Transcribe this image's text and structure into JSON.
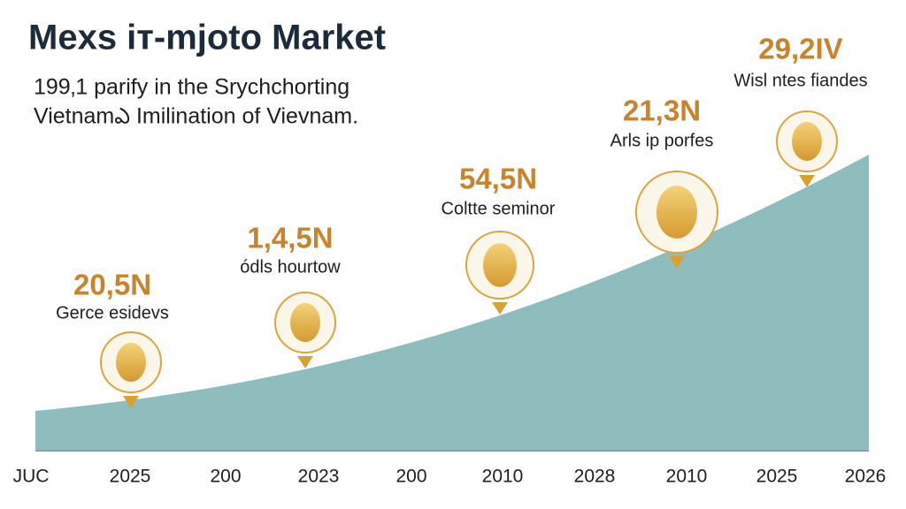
{
  "header": {
    "title": "Mexs iт-mjoto Market",
    "subtitle": [
      "199‚1 parify in the Srychchorting",
      "Vietnamఎ Imilination of Vievnam."
    ]
  },
  "x_labels": [
    "JUC",
    "2025",
    "200",
    "2023",
    "200",
    "2010",
    "2028",
    "2010",
    "2025",
    "2026"
  ],
  "callouts": [
    {
      "value": "20,5N",
      "label": "Gerce esidevs"
    },
    {
      "value": "1,4,5N",
      "label": "ódls hourtow"
    },
    {
      "value": "54,5N",
      "label": "Coltte seminor"
    },
    {
      "value": "21,3N",
      "label": "Arls ip porfes"
    },
    {
      "value": "29,2IV",
      "label": "Wisl ntes fiandes"
    }
  ]
}
